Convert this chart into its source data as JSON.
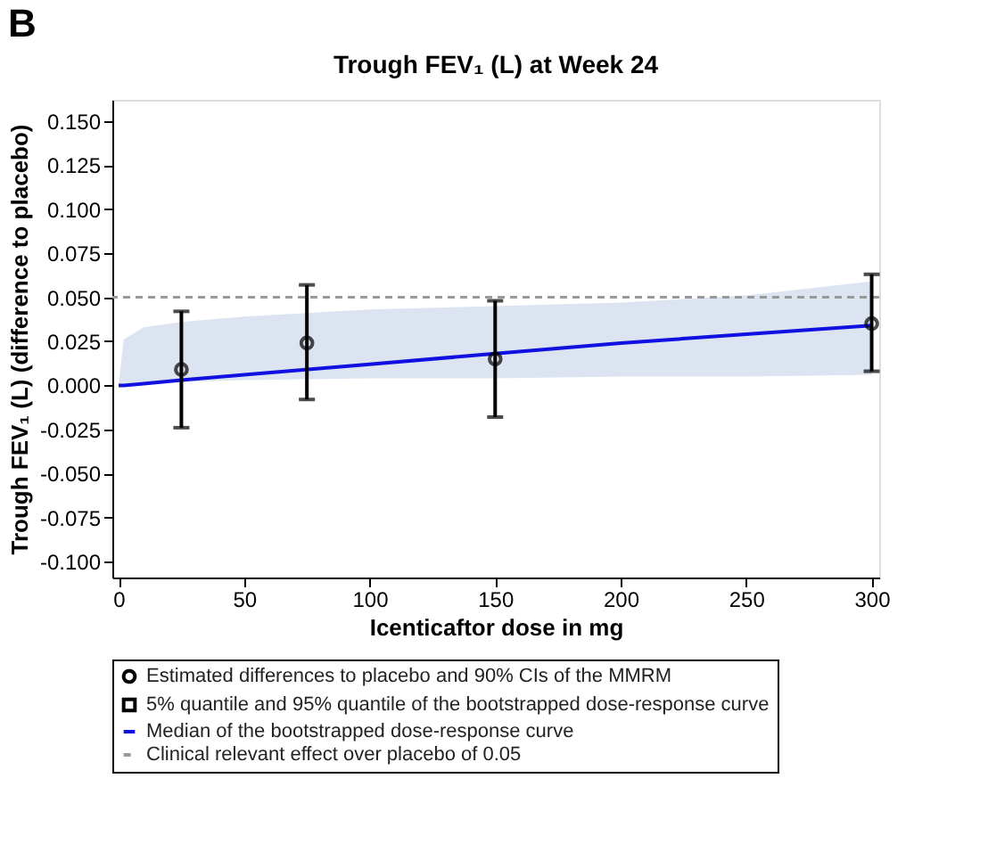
{
  "chart_data": {
    "type": "line",
    "title": "Trough FEV₁ (L) at Week 24",
    "xlabel": "Icenticaftor dose in mg",
    "ylabel": "Trough FEV₁ (L) (difference to placebo)",
    "annotations": [
      "B",
      "5% quantile and 95% quantile of the bootstrapped dose-response curve"
    ],
    "xlim": [
      -2.5,
      303
    ],
    "xticks": [
      0,
      50,
      100,
      150,
      200,
      250,
      300
    ],
    "ylim": [
      -0.109,
      0.162
    ],
    "yticks": [
      {
        "value": -0.1,
        "label": "-0.100"
      },
      {
        "value": -0.075,
        "label": "-0.075"
      },
      {
        "value": -0.05,
        "label": "-0.050"
      },
      {
        "value": -0.025,
        "label": "-0.025"
      },
      {
        "value": 0,
        "label": "0.000"
      },
      {
        "value": 0.025,
        "label": "0.025"
      },
      {
        "value": 0.05,
        "label": "0.050"
      },
      {
        "value": 0.075,
        "label": "0.075"
      },
      {
        "value": 0.1,
        "label": "0.100"
      },
      {
        "value": 0.125,
        "label": "0.125"
      },
      {
        "value": 0.15,
        "label": "0.150"
      }
    ],
    "grid": false,
    "legend": "bottom",
    "series": [
      {
        "name": "Estimated differences to placebo and 90% CIs of the MMRM",
        "type": "scatter",
        "marker": "circle",
        "color": "#000000",
        "x": [
          25,
          75,
          150,
          300
        ],
        "values": [
          0.009,
          0.024,
          0.015,
          0.035
        ],
        "errors": [
          [
            -0.024,
            0.042
          ],
          [
            -0.008,
            0.057
          ],
          [
            -0.018,
            0.048
          ],
          [
            0.008,
            0.063
          ]
        ]
      },
      {
        "name": "Median of the bootstrapped dose-response curve",
        "type": "line",
        "color": "#1010e0",
        "line_style": "solid",
        "x": [
          0,
          2,
          10,
          25,
          50,
          100,
          150,
          200,
          250,
          300
        ],
        "values": [
          0.0,
          0.0,
          0.001,
          0.003,
          0.006,
          0.012,
          0.018,
          0.024,
          0.029,
          0.034
        ],
        "lower": [
          0.0,
          0.001,
          0.002,
          0.002,
          0.003,
          0.004,
          0.004,
          0.005,
          0.005,
          0.006
        ],
        "upper": [
          0.0,
          0.026,
          0.033,
          0.036,
          0.039,
          0.043,
          0.045,
          0.047,
          0.051,
          0.059
        ]
      }
    ],
    "ref_lines": [
      {
        "axis": "y",
        "value": 0.05,
        "label": "Clinical relevant effect over placebo of 0.05",
        "color": "#999999",
        "line_style": "dashed"
      }
    ]
  }
}
